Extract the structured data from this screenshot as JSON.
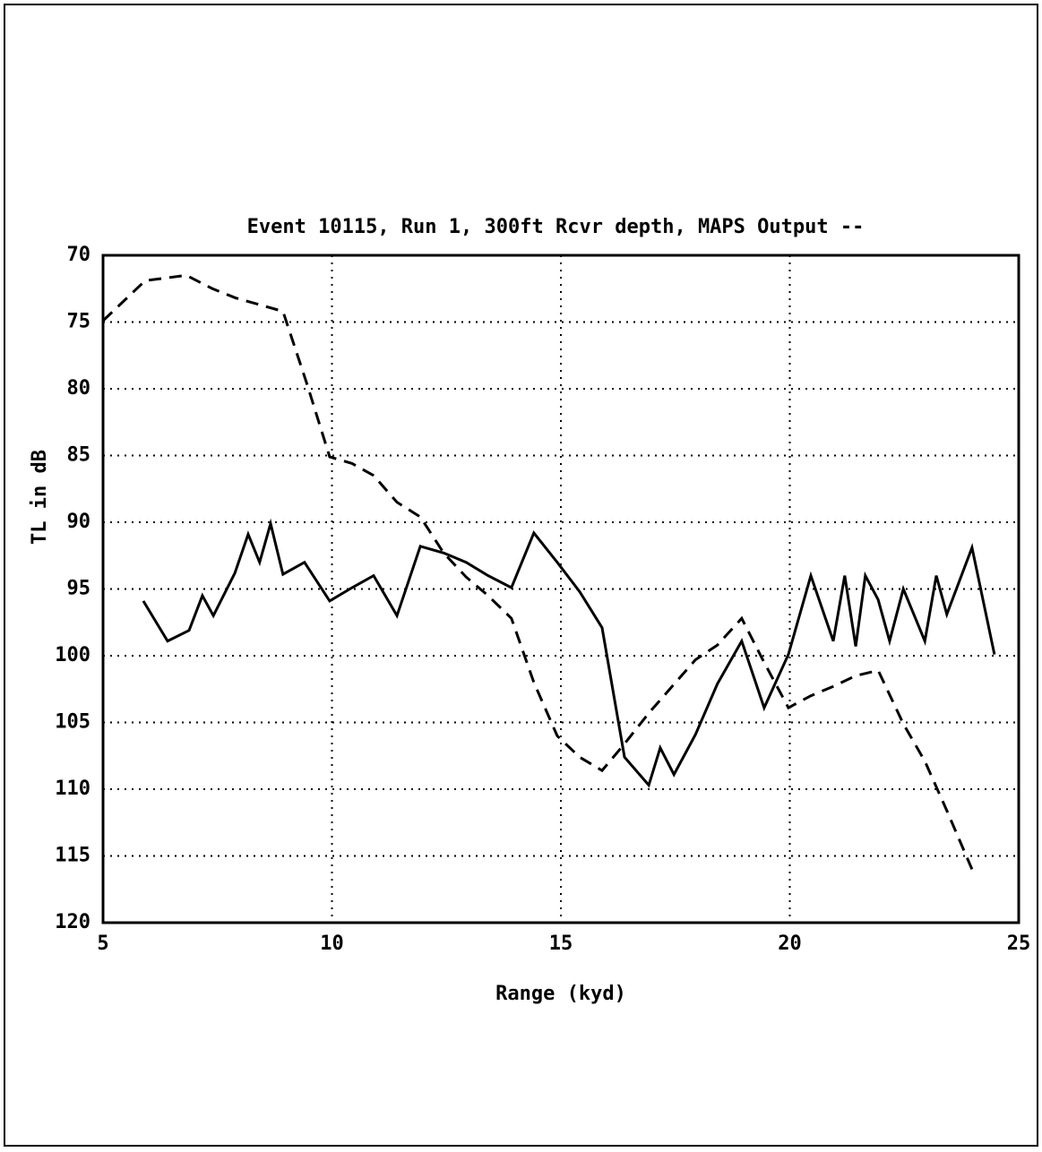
{
  "chart_data": {
    "type": "line",
    "title": "Event 10115, Run 1, 300ft Rcvr depth, MAPS Output --",
    "x_label": "Range (kyd)",
    "y_label": "TL in dB",
    "xlim": [
      5,
      25
    ],
    "xticks": [
      5,
      10,
      15,
      20,
      25
    ],
    "ylim": [
      70,
      120
    ],
    "y_inverted": true,
    "yticks": [
      70,
      75,
      80,
      85,
      90,
      95,
      100,
      105,
      110,
      115,
      120
    ],
    "grid": true,
    "grid_style": "dotted",
    "series": [
      {
        "color": "#000000",
        "style": "solid",
        "x": [
          5.88,
          6.41,
          6.88,
          7.17,
          7.41,
          7.88,
          8.17,
          8.42,
          8.66,
          8.93,
          9.4,
          9.95,
          10.44,
          10.91,
          11.42,
          11.93,
          12.44,
          12.93,
          13.41,
          13.92,
          14.41,
          14.92,
          15.41,
          15.9,
          16.39,
          16.92,
          17.17,
          17.47,
          17.94,
          18.42,
          18.95,
          19.44,
          19.97,
          20.46,
          20.95,
          21.2,
          21.44,
          21.65,
          21.93,
          22.18,
          22.48,
          22.95,
          23.2,
          23.43,
          23.98,
          24.47
        ],
        "values": [
          95.9,
          98.9,
          98.1,
          95.5,
          97.0,
          93.8,
          90.9,
          93.0,
          90.1,
          93.9,
          93.0,
          95.9,
          94.9,
          94.0,
          97.0,
          91.8,
          92.3,
          93.0,
          94.0,
          94.9,
          90.8,
          93.0,
          95.2,
          97.9,
          107.6,
          109.7,
          106.9,
          108.9,
          105.9,
          102.1,
          98.9,
          103.9,
          99.9,
          94.0,
          98.9,
          94.0,
          99.3,
          94.0,
          95.8,
          98.9,
          95.0,
          98.9,
          94.0,
          96.9,
          91.9,
          99.9
        ]
      },
      {
        "color": "#000000",
        "style": "dashed",
        "x": [
          5.0,
          5.92,
          6.37,
          6.82,
          7.39,
          7.9,
          8.42,
          8.93,
          9.46,
          9.95,
          10.44,
          10.91,
          11.42,
          11.93,
          12.44,
          12.93,
          13.41,
          13.92,
          14.41,
          14.92,
          15.41,
          15.9,
          16.39,
          16.92,
          17.43,
          17.94,
          18.42,
          18.95,
          19.44,
          19.97,
          20.46,
          20.95,
          21.44,
          21.93,
          22.48,
          22.95,
          23.43,
          23.98
        ],
        "values": [
          74.9,
          71.9,
          71.7,
          71.5,
          72.5,
          73.2,
          73.7,
          74.2,
          79.7,
          85.1,
          85.6,
          86.5,
          88.5,
          89.6,
          92.3,
          94.1,
          95.5,
          97.2,
          102.0,
          106.0,
          107.6,
          108.6,
          106.6,
          104.3,
          102.3,
          100.3,
          99.2,
          97.2,
          100.5,
          103.9,
          103.0,
          102.3,
          101.5,
          101.1,
          105.1,
          107.9,
          111.6,
          116.0
        ]
      }
    ]
  }
}
